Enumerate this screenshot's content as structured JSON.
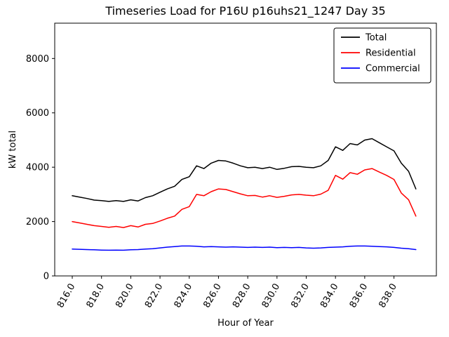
{
  "title": "Timeseries Load for P16U p16uhs21_1247  Day 35",
  "chart_data": {
    "type": "line",
    "title": "Timeseries Load for P16U p16uhs21_1247  Day 35",
    "xlabel": "Hour of Year",
    "ylabel": "kW total",
    "xlim": [
      814.8,
      840.9
    ],
    "ylim": [
      0,
      9300
    ],
    "grid": false,
    "legend_position": "upper right",
    "x_ticks": [
      816,
      818,
      820,
      822,
      824,
      826,
      828,
      830,
      832,
      834,
      836,
      838
    ],
    "x_tick_labels": [
      "816.0",
      "818.0",
      "820.0",
      "822.0",
      "824.0",
      "826.0",
      "828.0",
      "830.0",
      "832.0",
      "834.0",
      "836.0",
      "838.0"
    ],
    "y_ticks": [
      0,
      2000,
      4000,
      6000,
      8000
    ],
    "y_tick_labels": [
      "0",
      "2000",
      "4000",
      "6000",
      "8000"
    ],
    "x": [
      816.0,
      816.5,
      817.0,
      817.5,
      818.0,
      818.5,
      819.0,
      819.5,
      820.0,
      820.5,
      821.0,
      821.5,
      822.0,
      822.5,
      823.0,
      823.5,
      824.0,
      824.5,
      825.0,
      825.5,
      826.0,
      826.5,
      827.0,
      827.5,
      828.0,
      828.5,
      829.0,
      829.5,
      830.0,
      830.5,
      831.0,
      831.5,
      832.0,
      832.5,
      833.0,
      833.5,
      834.0,
      834.5,
      835.0,
      835.5,
      836.0,
      836.5,
      837.0,
      837.5,
      838.0,
      838.5,
      839.0,
      839.5
    ],
    "series": [
      {
        "name": "Total",
        "color": "#000000",
        "values": [
          2950,
          2900,
          2850,
          2790,
          2770,
          2740,
          2770,
          2740,
          2800,
          2760,
          2880,
          2950,
          3080,
          3200,
          3300,
          3550,
          3650,
          4050,
          3950,
          4150,
          4250,
          4230,
          4150,
          4050,
          3980,
          4000,
          3950,
          4000,
          3920,
          3960,
          4020,
          4030,
          4000,
          3980,
          4050,
          4250,
          4750,
          4620,
          4870,
          4820,
          5000,
          5050,
          4900,
          4750,
          4600,
          4150,
          3850,
          3200
        ]
      },
      {
        "name": "Residential",
        "color": "#ff0000",
        "values": [
          2000,
          1950,
          1900,
          1850,
          1820,
          1790,
          1820,
          1780,
          1850,
          1800,
          1900,
          1930,
          2020,
          2120,
          2200,
          2450,
          2550,
          3000,
          2950,
          3100,
          3200,
          3180,
          3100,
          3020,
          2950,
          2960,
          2900,
          2950,
          2890,
          2930,
          2980,
          3000,
          2970,
          2950,
          3010,
          3150,
          3700,
          3560,
          3800,
          3740,
          3900,
          3950,
          3820,
          3700,
          3550,
          3050,
          2800,
          2200
        ]
      },
      {
        "name": "Commercial",
        "color": "#0000ff",
        "values": [
          990,
          980,
          970,
          960,
          950,
          945,
          950,
          945,
          960,
          970,
          990,
          1000,
          1030,
          1060,
          1080,
          1100,
          1100,
          1090,
          1070,
          1080,
          1070,
          1060,
          1070,
          1060,
          1050,
          1060,
          1050,
          1060,
          1040,
          1050,
          1040,
          1050,
          1030,
          1020,
          1030,
          1050,
          1060,
          1070,
          1090,
          1100,
          1100,
          1090,
          1080,
          1070,
          1050,
          1020,
          1000,
          970
        ]
      }
    ]
  }
}
